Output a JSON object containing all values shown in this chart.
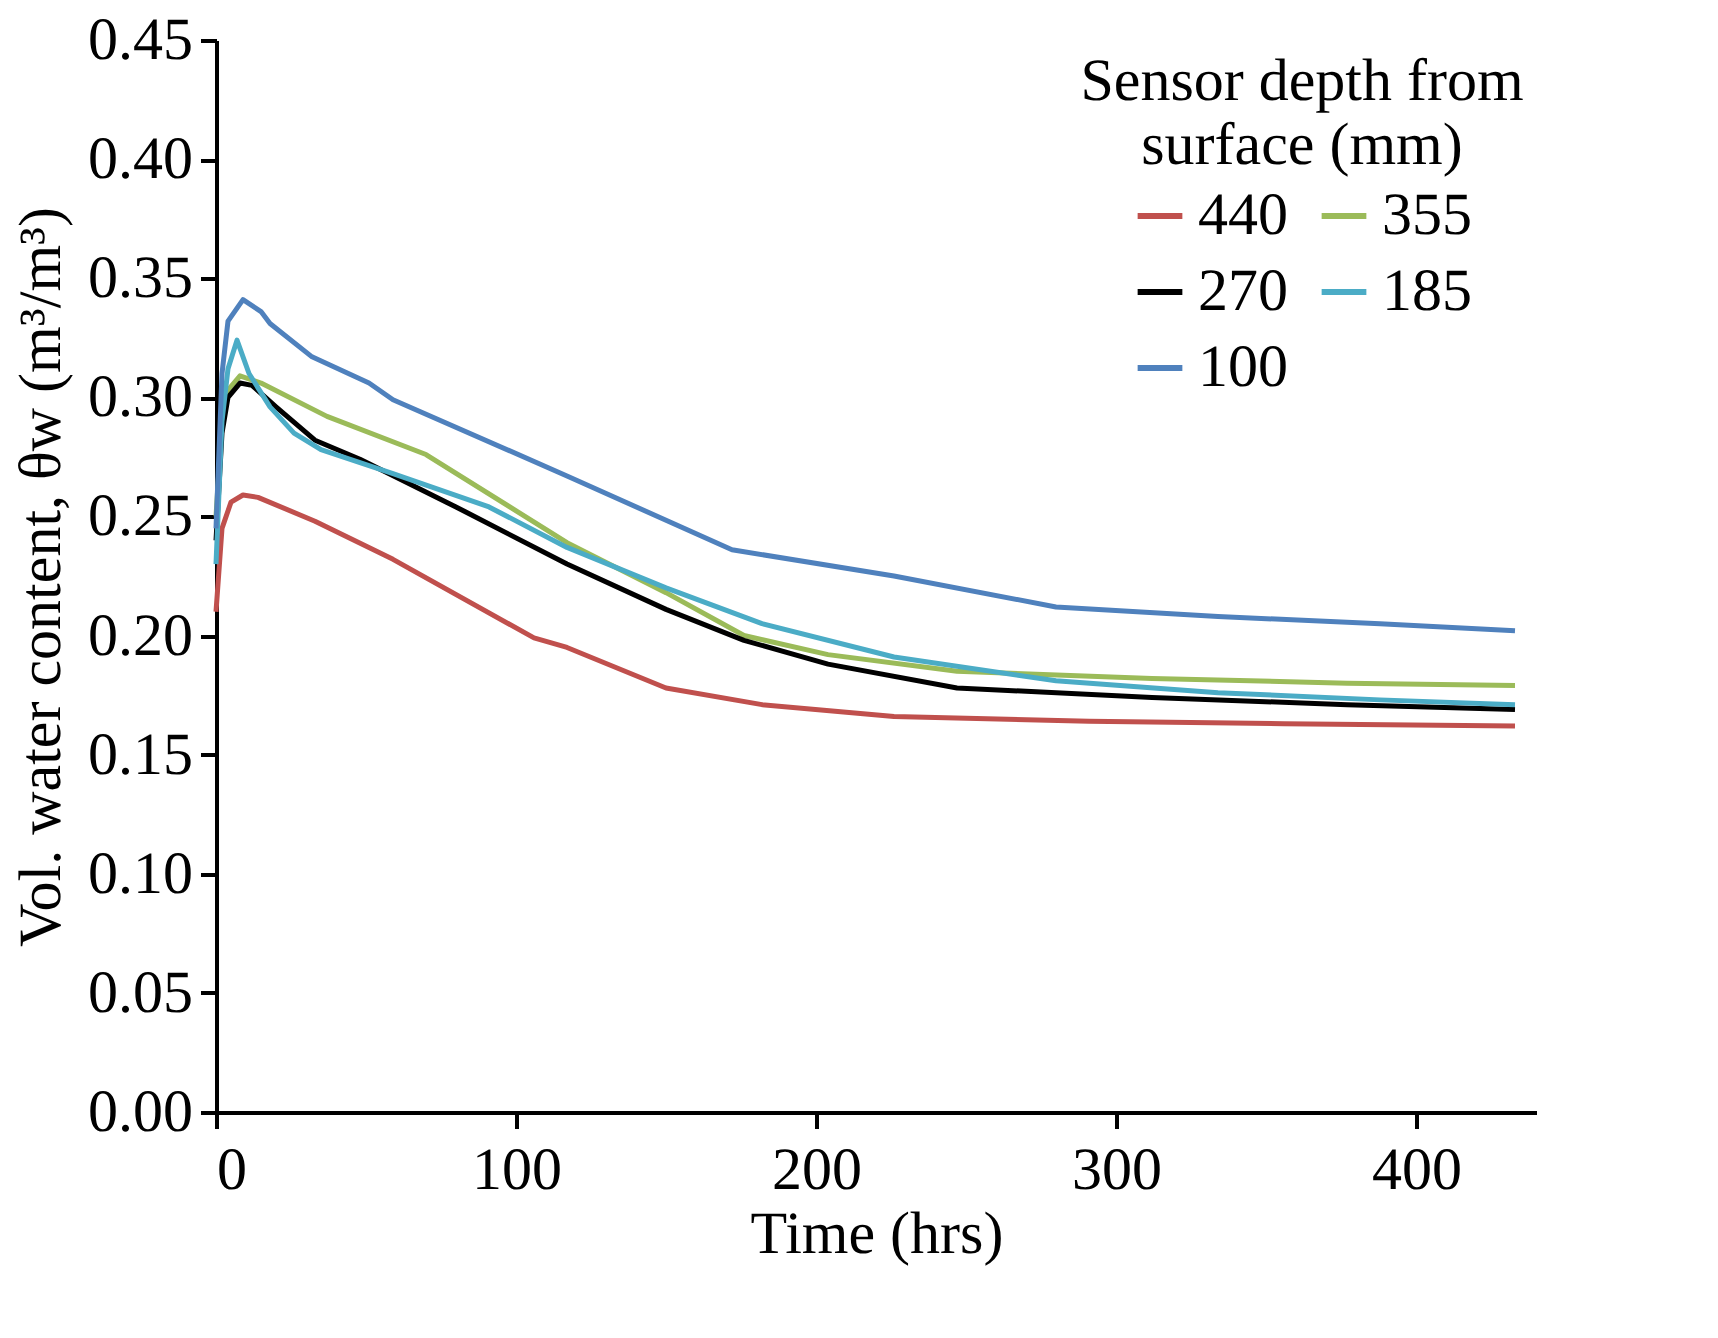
{
  "chart_data": {
    "type": "line",
    "xlabel": "Time (hrs)",
    "ylabel": "Vol. water content, θw (m³/m³)",
    "legend_title": "Sensor depth from surface (mm)",
    "xlim": [
      0,
      440
    ],
    "xticks": [
      0,
      100,
      200,
      300,
      400
    ],
    "ylim": [
      0,
      0.45
    ],
    "yticks": [
      {
        "value": 0,
        "label": "0.00"
      },
      {
        "value": 0.05,
        "label": "0.05"
      },
      {
        "value": 0.1,
        "label": "0.10"
      },
      {
        "value": 0.15,
        "label": "0.15"
      },
      {
        "value": 0.2,
        "label": "0.20"
      },
      {
        "value": 0.25,
        "label": "0.25"
      },
      {
        "value": 0.3,
        "label": "0.30"
      },
      {
        "value": 0.35,
        "label": "0.35"
      },
      {
        "value": 0.4,
        "label": "0.40"
      },
      {
        "value": 0.45,
        "label": "0.45"
      }
    ],
    "grid": false,
    "legend": "top right",
    "marker": "none",
    "line_style": "solid",
    "series": [
      {
        "name": "440",
        "color": "#c0504d",
        "x": [
          0,
          2,
          5,
          9,
          14,
          33,
          59,
          106,
          117,
          150,
          182,
          226,
          291,
          356,
          433
        ],
        "values": [
          0.21,
          0.245,
          0.256,
          0.259,
          0.258,
          0.248,
          0.232,
          0.199,
          0.195,
          0.178,
          0.171,
          0.166,
          0.164,
          0.163,
          0.162
        ]
      },
      {
        "name": "355",
        "color": "#9bbb59",
        "x": [
          0,
          2,
          4,
          8,
          15,
          37,
          70,
          117,
          150,
          176,
          204,
          247,
          312,
          377,
          433
        ],
        "values": [
          0.25,
          0.29,
          0.303,
          0.309,
          0.306,
          0.292,
          0.276,
          0.239,
          0.218,
          0.2,
          0.192,
          0.185,
          0.182,
          0.18,
          0.179
        ]
      },
      {
        "name": "270",
        "color": "#000000",
        "x": [
          0,
          2,
          4,
          8,
          12,
          20,
          33,
          48,
          80,
          117,
          150,
          176,
          204,
          247,
          312,
          377,
          433
        ],
        "values": [
          0.24,
          0.285,
          0.3,
          0.306,
          0.305,
          0.296,
          0.282,
          0.274,
          0.254,
          0.23,
          0.211,
          0.198,
          0.188,
          0.178,
          0.174,
          0.171,
          0.169
        ]
      },
      {
        "name": "185",
        "color": "#4bacc6",
        "x": [
          0,
          2,
          4,
          7,
          11,
          18,
          26,
          35,
          59,
          91,
          117,
          150,
          182,
          226,
          280,
          334,
          388,
          433
        ],
        "values": [
          0.23,
          0.29,
          0.312,
          0.324,
          0.31,
          0.296,
          0.285,
          0.278,
          0.268,
          0.254,
          0.237,
          0.22,
          0.205,
          0.191,
          0.181,
          0.176,
          0.173,
          0.171
        ]
      },
      {
        "name": "100",
        "color": "#4f81bd",
        "x": [
          0,
          2,
          4,
          9,
          15,
          18,
          32,
          51,
          59,
          117,
          172,
          226,
          280,
          334,
          388,
          433
        ],
        "values": [
          0.245,
          0.31,
          0.332,
          0.341,
          0.336,
          0.331,
          0.317,
          0.306,
          0.299,
          0.267,
          0.236,
          0.225,
          0.212,
          0.208,
          0.205,
          0.202
        ]
      }
    ]
  }
}
